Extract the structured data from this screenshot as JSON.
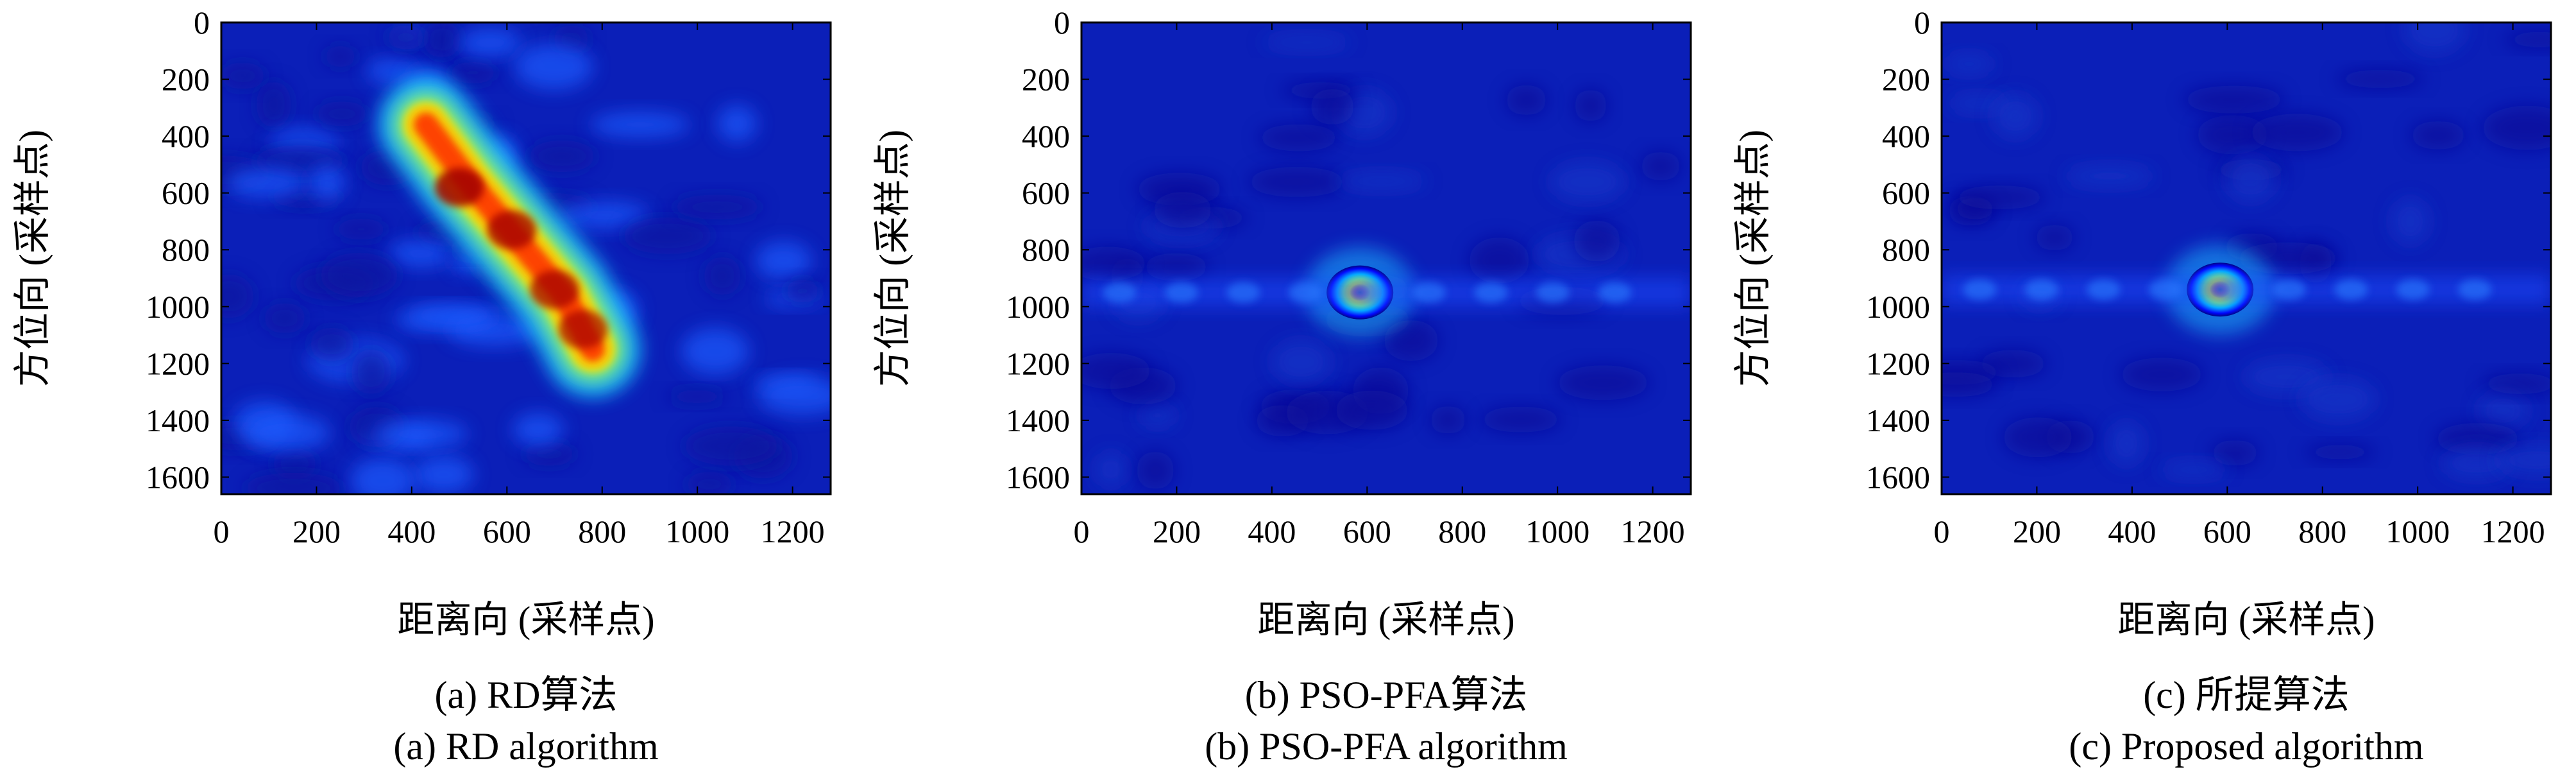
{
  "chart_data": [
    {
      "type": "heatmap",
      "xlabel": "距离向 (采样点)",
      "ylabel": "方位向 (采样点)",
      "xlim": [
        0,
        1280
      ],
      "ylim": [
        1660,
        0
      ],
      "xticks": [
        "0",
        "200",
        "400",
        "600",
        "800",
        "1000",
        "1200"
      ],
      "yticks": [
        "0",
        "200",
        "400",
        "600",
        "800",
        "1000",
        "1200",
        "1400",
        "1600"
      ],
      "colormap": "jet",
      "caption_cn": "(a) RD算法",
      "caption_en": "(a) RD algorithm",
      "features": [
        {
          "label": "smeared target",
          "x_range": [
            420,
            780
          ],
          "y_range": [
            350,
            1150
          ],
          "intensity": 1.0
        },
        {
          "label": "peak",
          "x": 500,
          "y": 580,
          "intensity": 1.0
        },
        {
          "label": "peak",
          "x": 610,
          "y": 730,
          "intensity": 0.9
        },
        {
          "label": "peak",
          "x": 700,
          "y": 940,
          "intensity": 0.85
        },
        {
          "label": "peak",
          "x": 760,
          "y": 1080,
          "intensity": 0.8
        }
      ]
    },
    {
      "type": "heatmap",
      "xlabel": "距离向 (采样点)",
      "ylabel": "方位向 (采样点)",
      "xlim": [
        0,
        1280
      ],
      "ylim": [
        1660,
        0
      ],
      "xticks": [
        "0",
        "200",
        "400",
        "600",
        "800",
        "1000",
        "1200"
      ],
      "yticks": [
        "0",
        "200",
        "400",
        "600",
        "800",
        "1000",
        "1200",
        "1400",
        "1600"
      ],
      "colormap": "jet",
      "caption_cn": "(b) PSO-PFA算法",
      "caption_en": "(b) PSO-PFA algorithm",
      "features": [
        {
          "label": "focused target",
          "x": 585,
          "y": 950,
          "intensity": 1.0
        },
        {
          "label": "sidelobe row",
          "y": 950,
          "x_range": [
            0,
            1280
          ],
          "intensity": 0.25
        }
      ]
    },
    {
      "type": "heatmap",
      "xlabel": "距离向 (采样点)",
      "ylabel": "方位向 (采样点)",
      "xlim": [
        0,
        1280
      ],
      "ylim": [
        1660,
        0
      ],
      "xticks": [
        "0",
        "200",
        "400",
        "600",
        "800",
        "1000",
        "1200"
      ],
      "yticks": [
        "0",
        "200",
        "400",
        "600",
        "800",
        "1000",
        "1200",
        "1400",
        "1600"
      ],
      "colormap": "jet",
      "caption_cn": "(c) 所提算法",
      "caption_en": "(c) Proposed algorithm",
      "features": [
        {
          "label": "focused target",
          "x": 585,
          "y": 940,
          "intensity": 1.0
        },
        {
          "label": "sidelobe row",
          "y": 940,
          "x_range": [
            0,
            1280
          ],
          "intensity": 0.2
        }
      ]
    }
  ]
}
